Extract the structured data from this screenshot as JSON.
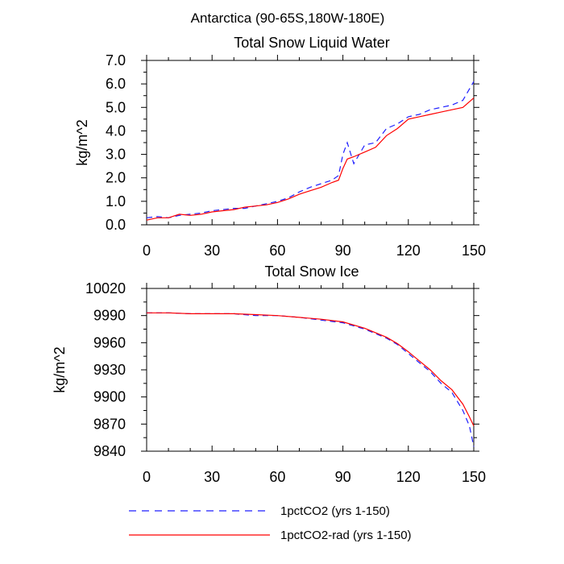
{
  "figure": {
    "title": "Antarctica (90-65S,180W-180E)"
  },
  "legend": {
    "entries": [
      {
        "label": "1pctCO2 (yrs 1-150)",
        "color": "#1f1fff",
        "dash": "dashed"
      },
      {
        "label": "1pctCO2-rad (yrs 1-150)",
        "color": "#ff0000",
        "dash": "solid"
      }
    ]
  },
  "chart_data": [
    {
      "type": "line",
      "title": "Total Snow Liquid Water",
      "xlabel": "",
      "ylabel": "kg/m^2",
      "xlim": [
        0,
        150
      ],
      "ylim": [
        0,
        7
      ],
      "xticks": [
        0,
        30,
        60,
        90,
        120,
        150
      ],
      "yticks": [
        0,
        1,
        2,
        3,
        4,
        5,
        6,
        7
      ],
      "ytick_labels": [
        "0.0",
        "1.0",
        "2.0",
        "3.0",
        "4.0",
        "5.0",
        "6.0",
        "7.0"
      ],
      "grid": false,
      "series": [
        {
          "name": "1pctCO2 (yrs 1-150)",
          "color": "#1f1fff",
          "dash": "dashed",
          "x": [
            0,
            5,
            10,
            15,
            20,
            25,
            30,
            35,
            40,
            45,
            50,
            55,
            60,
            65,
            70,
            75,
            80,
            85,
            88,
            90,
            92,
            95,
            100,
            105,
            110,
            115,
            120,
            125,
            130,
            135,
            140,
            145,
            150
          ],
          "y": [
            0.3,
            0.35,
            0.3,
            0.4,
            0.45,
            0.5,
            0.6,
            0.65,
            0.7,
            0.7,
            0.8,
            0.9,
            1.0,
            1.15,
            1.4,
            1.6,
            1.75,
            1.9,
            2.1,
            3.0,
            3.5,
            2.6,
            3.4,
            3.5,
            4.1,
            4.3,
            4.6,
            4.7,
            4.9,
            5.0,
            5.1,
            5.3,
            6.1
          ]
        },
        {
          "name": "1pctCO2-rad (yrs 1-150)",
          "color": "#ff0000",
          "dash": "solid",
          "x": [
            0,
            5,
            10,
            15,
            20,
            25,
            30,
            35,
            40,
            45,
            50,
            55,
            60,
            65,
            70,
            75,
            80,
            85,
            88,
            90,
            92,
            95,
            100,
            105,
            110,
            115,
            120,
            125,
            130,
            135,
            140,
            145,
            150
          ],
          "y": [
            0.2,
            0.3,
            0.3,
            0.45,
            0.4,
            0.45,
            0.55,
            0.6,
            0.65,
            0.75,
            0.8,
            0.85,
            0.95,
            1.1,
            1.3,
            1.45,
            1.6,
            1.8,
            1.9,
            2.4,
            2.8,
            2.9,
            3.1,
            3.3,
            3.8,
            4.1,
            4.5,
            4.6,
            4.7,
            4.8,
            4.9,
            5.0,
            5.4
          ]
        }
      ]
    },
    {
      "type": "line",
      "title": "Total Snow Ice",
      "xlabel": "",
      "ylabel": "kg/m^2",
      "xlim": [
        0,
        150
      ],
      "ylim": [
        9840,
        10020
      ],
      "xticks": [
        0,
        30,
        60,
        90,
        120,
        150
      ],
      "yticks": [
        9840,
        9870,
        9900,
        9930,
        9960,
        9990,
        10020
      ],
      "ytick_labels": [
        "9840",
        "9870",
        "9900",
        "9930",
        "9960",
        "9990",
        "10020"
      ],
      "grid": false,
      "series": [
        {
          "name": "1pctCO2 (yrs 1-150)",
          "color": "#1f1fff",
          "dash": "dashed",
          "x": [
            0,
            10,
            20,
            30,
            40,
            50,
            60,
            70,
            80,
            90,
            100,
            110,
            115,
            120,
            125,
            130,
            135,
            140,
            145,
            148,
            150
          ],
          "y": [
            9993,
            9993,
            9992,
            9992,
            9992,
            9990,
            9990,
            9988,
            9985,
            9982,
            9975,
            9965,
            9958,
            9948,
            9938,
            9928,
            9915,
            9905,
            9885,
            9868,
            9845
          ]
        },
        {
          "name": "1pctCO2-rad (yrs 1-150)",
          "color": "#ff0000",
          "dash": "solid",
          "x": [
            0,
            10,
            20,
            30,
            40,
            50,
            60,
            70,
            80,
            90,
            100,
            110,
            115,
            120,
            125,
            130,
            135,
            140,
            145,
            148,
            150
          ],
          "y": [
            9993,
            9993,
            9992,
            9992,
            9992,
            9991,
            9990,
            9988,
            9986,
            9983,
            9976,
            9966,
            9959,
            9950,
            9940,
            9930,
            9918,
            9908,
            9892,
            9878,
            9868
          ]
        }
      ]
    }
  ]
}
